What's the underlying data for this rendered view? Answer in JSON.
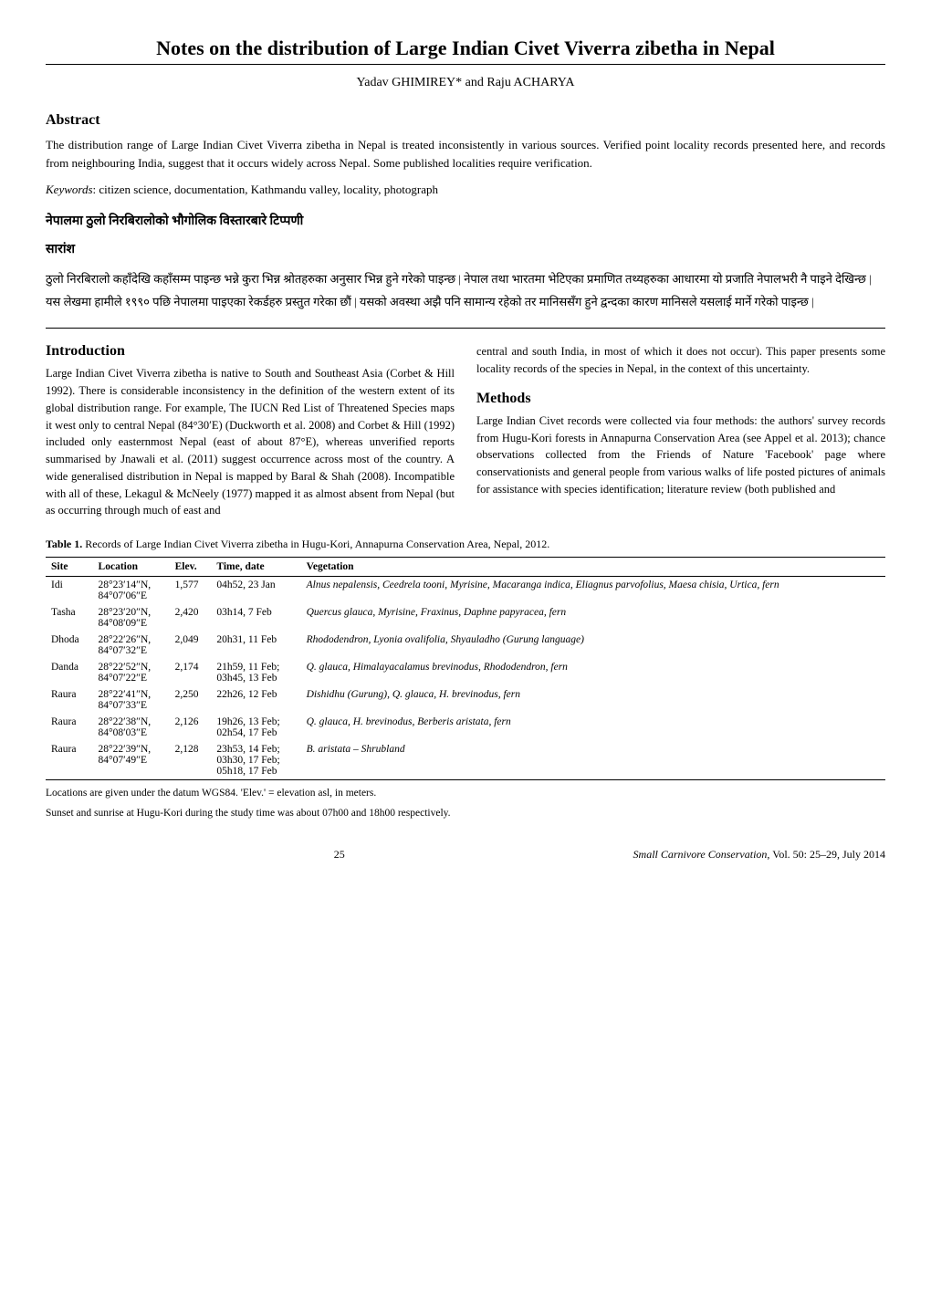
{
  "title": "Notes on the distribution of Large Indian Civet Viverra zibetha in Nepal",
  "authors": "Yadav GHIMIREY* and Raju ACHARYA",
  "abstract_heading": "Abstract",
  "abstract_text": "The distribution range of Large Indian Civet Viverra zibetha in Nepal is treated inconsistently in various sources. Verified point locality records presented here, and records from neighbouring India, suggest that it occurs widely across Nepal. Some published localities require verification.",
  "keywords_label": "Keywords",
  "keywords_text": ": citizen science, documentation, Kathmandu valley, locality, photograph",
  "devanagari_heading": "नेपालमा ठुलो निरबिरालोको भौगोलिक विस्तारबारे टिप्पणी",
  "saransh_heading": "सारांश",
  "devanagari_body": "ठुलो निरबिरालो कहाँदेखि कहाँसम्म पाइन्छ भन्ने कुरा भिन्न श्रोतहरुका अनुसार भिन्न हुने गरेको पाइन्छ | नेपाल  तथा  भारतमा भेटिएका प्रमाणित  तथ्यहरुका  आधारमा यो प्रजाति नेपालभरी नै पाइने देखिन्छ | यस लेखमा हामीले १९९० पछि नेपालमा पाइएका रेकर्डहरु प्रस्तुत गरेका छौं | यसको अवस्था अझै पनि सामान्य रहेको तर मानिससँग हुने द्वन्दका कारण मानिसले यसलाई मार्ने गरेको पाइन्छ |",
  "introduction_heading": "Introduction",
  "introduction_text": "Large Indian Civet Viverra zibetha is native to South and Southeast Asia (Corbet & Hill 1992). There is considerable inconsistency in the definition of the western extent of its global distribution range. For example, The IUCN Red List of Threatened Species maps it west only to central Nepal (84°30′E) (Duckworth et al. 2008) and Corbet & Hill (1992) included only easternmost Nepal (east of about 87°E), whereas unverified reports summarised by Jnawali et al. (2011) suggest occurrence across most of the country. A wide generalised distribution in Nepal is mapped by Baral & Shah (2008). Incompatible with all of these, Lekagul & McNeely (1977) mapped it as almost absent from Nepal (but as occurring through much of east and",
  "introduction_text2": "central and south India, in most of which it does not occur). This paper presents some locality records of the species in Nepal, in the context of this uncertainty.",
  "methods_heading": "Methods",
  "methods_text": "Large Indian Civet records were collected via four methods: the authors' survey records from Hugu-Kori forests in Annapurna Conservation Area (see Appel et al. 2013); chance observations collected from the Friends of Nature 'Facebook' page where conservationists and general people from various walks of life posted pictures of animals for assistance with species identification; literature review (both published and",
  "table_caption_bold": "Table 1.",
  "table_caption_text": " Records of Large Indian Civet Viverra zibetha in Hugu-Kori, Annapurna Conservation Area, Nepal, 2012.",
  "table": {
    "columns": [
      "Site",
      "Location",
      "Elev.",
      "Time, date",
      "Vegetation"
    ],
    "rows": [
      [
        "Idi",
        "28°23′14″N, 84°07′06″E",
        "1,577",
        "04h52, 23 Jan",
        "Alnus nepalensis, Ceedrela tooni, Myrisine, Macaranga indica, Eliagnus parvofolius, Maesa chisia, Urtica, fern"
      ],
      [
        "Tasha",
        "28°23′20″N, 84°08′09″E",
        "2,420",
        "03h14, 7 Feb",
        "Quercus glauca, Myrisine, Fraxinus, Daphne papyracea, fern"
      ],
      [
        "Dhoda",
        "28°22′26″N, 84°07′32″E",
        "2,049",
        "20h31, 11 Feb",
        "Rhododendron, Lyonia ovalifolia, Shyauladho (Gurung language)"
      ],
      [
        "Danda",
        "28°22′52″N, 84°07′22″E",
        "2,174",
        "21h59, 11 Feb; 03h45, 13 Feb",
        "Q. glauca, Himalayacalamus brevinodus, Rhododendron, fern"
      ],
      [
        "Raura",
        "28°22′41″N, 84°07′33″E",
        "2,250",
        "22h26, 12 Feb",
        "Dishidhu (Gurung), Q. glauca, H. brevinodus, fern"
      ],
      [
        "Raura",
        "28°22′38″N, 84°08′03″E",
        "2,126",
        "19h26, 13 Feb; 02h54, 17 Feb",
        "Q. glauca, H. brevinodus, Berberis aristata, fern"
      ],
      [
        "Raura",
        "28°22′39″N, 84°07′49″E",
        "2,128",
        "23h53, 14 Feb; 03h30, 17 Feb; 05h18, 17 Feb",
        "B. aristata – Shrubland"
      ]
    ],
    "vegetation_italic": [
      true,
      true,
      true,
      true,
      false,
      true,
      true
    ]
  },
  "table_footer1": "Locations are given under the datum WGS84. 'Elev.' = elevation asl, in meters.",
  "table_footer2": "Sunset and sunrise at Hugu-Kori during the study time was about 07h00 and 18h00 respectively.",
  "page_number": "25",
  "journal": "Small Carnivore Conservation",
  "volume": ", Vol. 50: 25–29, July 2014"
}
